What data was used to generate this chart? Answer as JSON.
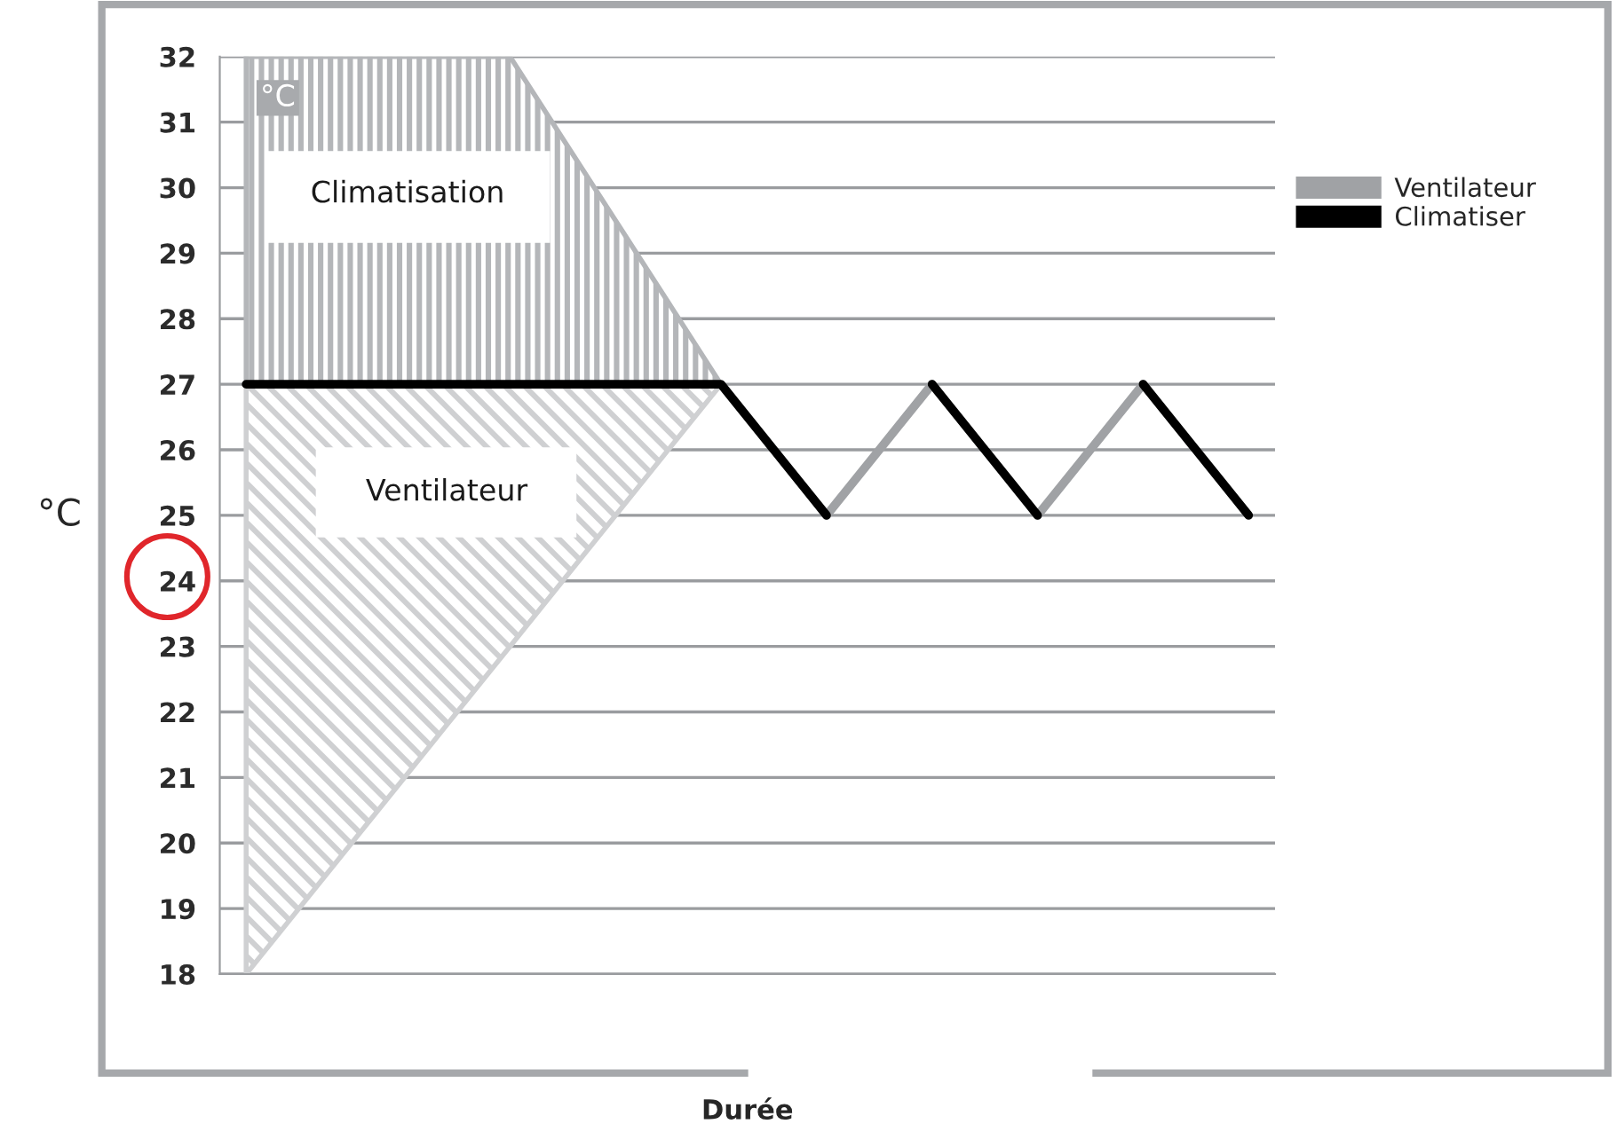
{
  "chart_data": {
    "type": "line",
    "xlabel": "Durée",
    "ylabel": "°C",
    "categories": [
      null,
      null,
      null,
      null,
      null,
      null,
      null,
      null,
      null,
      null,
      null,
      null,
      null,
      null,
      null,
      null,
      null,
      null,
      null,
      null
    ],
    "ylim": [
      18,
      32
    ],
    "yticks": [
      18,
      19,
      20,
      21,
      22,
      23,
      24,
      25,
      26,
      27,
      28,
      29,
      30,
      31,
      32
    ],
    "grid": "y",
    "legend": "right",
    "marker": "none",
    "line_style": "solid",
    "series": [
      {
        "color": "#b4b6b9",
        "values": [
          32,
          32,
          32,
          32,
          32,
          32,
          30.75,
          29.5,
          28.25,
          27,
          null,
          null,
          null,
          null,
          null,
          null,
          null,
          null,
          null,
          null
        ],
        "lower": [
          27,
          27,
          27,
          27,
          27,
          27,
          27,
          27,
          27,
          27,
          null,
          null,
          null,
          null,
          null,
          null,
          null,
          null,
          null,
          null
        ],
        "upper": [
          32,
          32,
          32,
          32,
          32,
          32,
          30.75,
          29.5,
          28.25,
          27,
          null,
          null,
          null,
          null,
          null,
          null,
          null,
          null,
          null,
          null
        ]
      },
      {
        "color": "#cfd0d2",
        "values": [
          18,
          19,
          20,
          21,
          22,
          23,
          24,
          25,
          26,
          27,
          null,
          null,
          null,
          null,
          null,
          null,
          null,
          null,
          null,
          null
        ],
        "lower": [
          18,
          19,
          20,
          21,
          22,
          23,
          24,
          25,
          26,
          27,
          null,
          null,
          null,
          null,
          null,
          null,
          null,
          null,
          null,
          null
        ],
        "upper": [
          27,
          27,
          27,
          27,
          27,
          27,
          27,
          27,
          27,
          27,
          null,
          null,
          null,
          null,
          null,
          null,
          null,
          null,
          null,
          null
        ]
      },
      {
        "name": "Ventilateur",
        "color": "#a0a2a5",
        "values": [
          null,
          null,
          null,
          null,
          null,
          null,
          null,
          null,
          null,
          null,
          null,
          25,
          26,
          27,
          null,
          null,
          null,
          null,
          null,
          null
        ]
      },
      {
        "color": "#a0a2a5",
        "values": [
          null,
          null,
          null,
          null,
          null,
          null,
          null,
          null,
          null,
          null,
          null,
          null,
          null,
          null,
          null,
          25,
          26,
          27,
          null,
          null
        ]
      },
      {
        "name": "Climatiser",
        "color": "#000000",
        "values": [
          27,
          27,
          27,
          27,
          27,
          27,
          27,
          27,
          27,
          27,
          26,
          25,
          null,
          null,
          null,
          null,
          null,
          null,
          null,
          null
        ]
      },
      {
        "color": "#000000",
        "values": [
          null,
          null,
          null,
          null,
          null,
          null,
          null,
          null,
          null,
          null,
          null,
          null,
          null,
          27,
          26,
          25,
          null,
          null,
          null,
          null
        ]
      },
      {
        "color": "#000000",
        "values": [
          null,
          null,
          null,
          null,
          null,
          null,
          null,
          null,
          null,
          null,
          null,
          null,
          null,
          null,
          null,
          null,
          null,
          27,
          26,
          25
        ]
      }
    ],
    "annotations": [
      "°C",
      "Climatisation",
      "Ventilateur"
    ]
  }
}
